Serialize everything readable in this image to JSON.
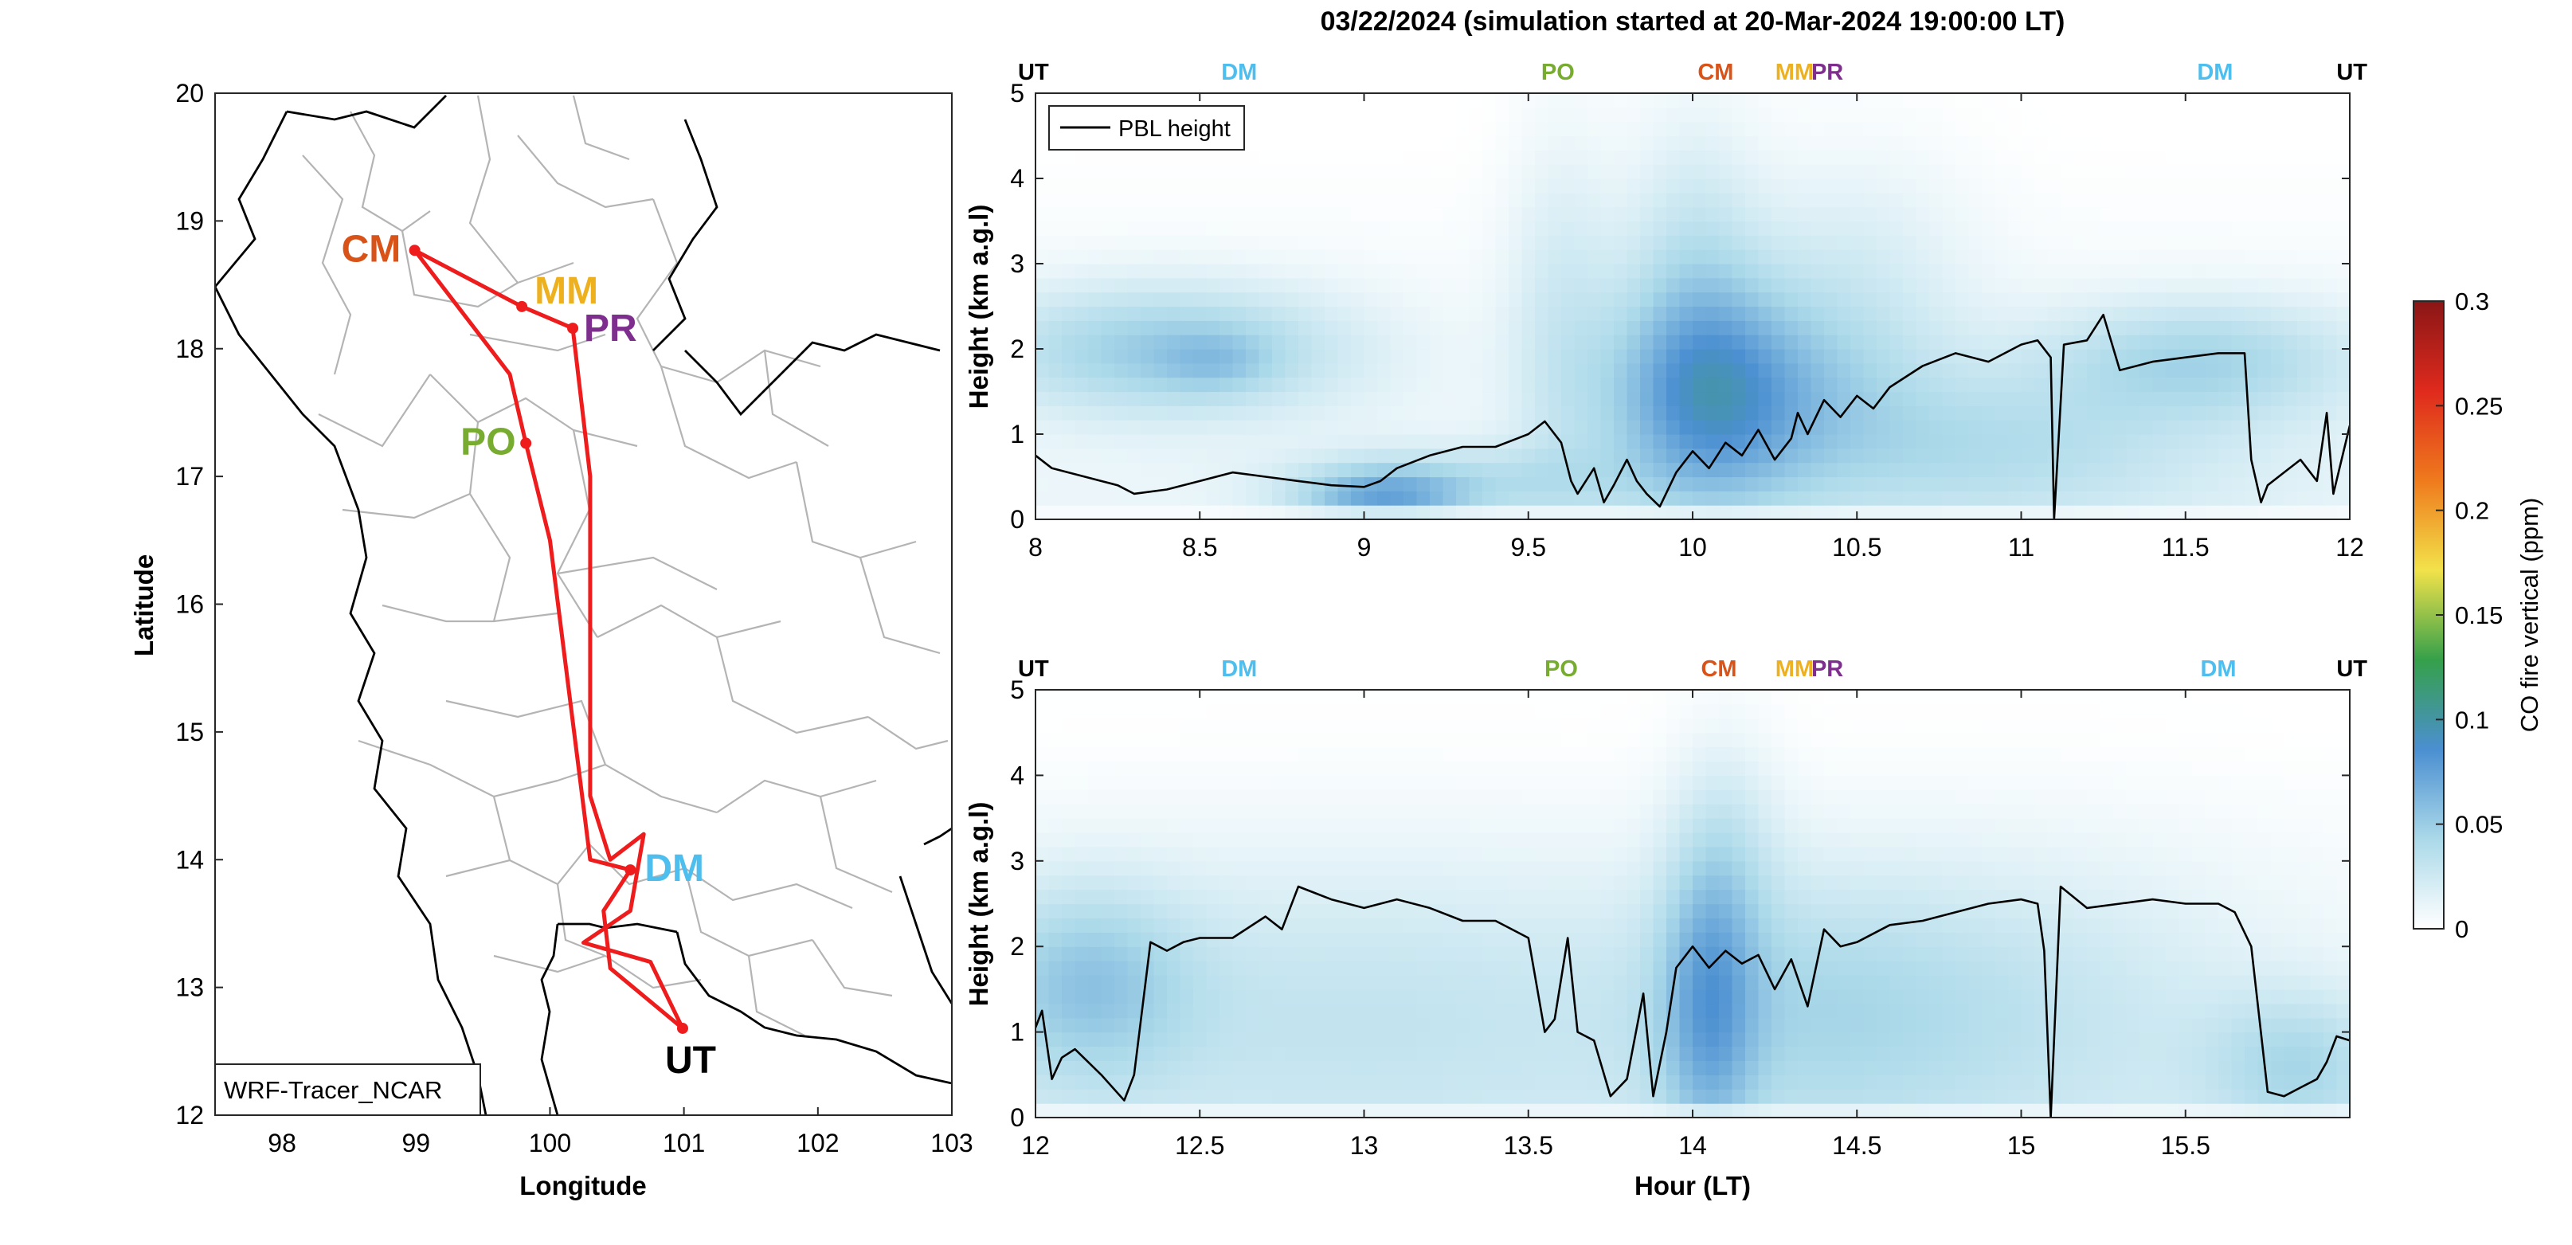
{
  "figure": {
    "title": "03/22/2024 (simulation started at 20-Mar-2024 19:00:00 LT)"
  },
  "chart_data": [
    {
      "type": "scatter",
      "panel": "map",
      "xlabel": "Longitude",
      "ylabel": "Latitude",
      "xlim": [
        97.5,
        103
      ],
      "ylim": [
        12,
        20
      ],
      "xticks": [
        98,
        99,
        100,
        101,
        102,
        103
      ],
      "yticks": [
        12,
        13,
        14,
        15,
        16,
        17,
        18,
        19,
        20
      ],
      "model_label": "WRF-Tracer_NCAR",
      "route_color": "#ee1c1c",
      "stations": [
        {
          "name": "CM",
          "lon": 98.99,
          "lat": 18.77,
          "color": "#d95319"
        },
        {
          "name": "MM",
          "lon": 99.79,
          "lat": 18.33,
          "color": "#edb120"
        },
        {
          "name": "PR",
          "lon": 100.17,
          "lat": 18.16,
          "color": "#7e2f8e"
        },
        {
          "name": "PO",
          "lon": 99.82,
          "lat": 17.26,
          "color": "#77ac30"
        },
        {
          "name": "DM",
          "lon": 100.6,
          "lat": 13.92,
          "color": "#4dbeee"
        },
        {
          "name": "UT",
          "lon": 100.99,
          "lat": 12.68,
          "color": "#000000"
        }
      ],
      "route": [
        [
          100.99,
          12.68
        ],
        [
          100.45,
          13.15
        ],
        [
          100.4,
          13.6
        ],
        [
          100.6,
          13.92
        ],
        [
          100.3,
          14.0
        ],
        [
          100.0,
          16.5
        ],
        [
          99.82,
          17.26
        ],
        [
          99.7,
          17.8
        ],
        [
          98.99,
          18.77
        ],
        [
          99.79,
          18.33
        ],
        [
          100.17,
          18.16
        ],
        [
          100.3,
          17.0
        ],
        [
          100.3,
          14.5
        ],
        [
          100.45,
          14.0
        ],
        [
          100.7,
          14.2
        ],
        [
          100.6,
          13.6
        ],
        [
          100.25,
          13.35
        ],
        [
          100.75,
          13.2
        ],
        [
          100.99,
          12.68
        ]
      ]
    },
    {
      "type": "heatmap",
      "panel": "top",
      "ylabel": "Height (km a.g.l)",
      "xlim": [
        8,
        12
      ],
      "ylim": [
        0,
        5
      ],
      "xticks": [
        "8",
        "8.5",
        "9",
        "9.5",
        "10",
        "10.5",
        "11",
        "11.5",
        "12"
      ],
      "yticks": [
        "0",
        "1",
        "2",
        "3",
        "4",
        "5"
      ],
      "legend": "PBL height",
      "station_marks": [
        {
          "name": "UT",
          "x": 8,
          "color": "#000000"
        },
        {
          "name": "DM",
          "x": 8.62,
          "color": "#4dbeee"
        },
        {
          "name": "PO",
          "x": 9.59,
          "color": "#77ac30"
        },
        {
          "name": "CM",
          "x": 10.07,
          "color": "#d95319"
        },
        {
          "name": "MM",
          "x": 10.31,
          "color": "#edb120"
        },
        {
          "name": "PR",
          "x": 10.41,
          "color": "#7e2f8e"
        },
        {
          "name": "DM",
          "x": 11.59,
          "color": "#4dbeee"
        },
        {
          "name": "UT",
          "x": 12,
          "color": "#000000"
        }
      ],
      "field": {
        "background": 0.01,
        "blobs": [
          {
            "x": 8.4,
            "y": 2.0,
            "sx": 0.4,
            "sy": 0.55,
            "v": 0.045
          },
          {
            "x": 8.55,
            "y": 1.85,
            "sx": 0.12,
            "sy": 0.25,
            "v": 0.015
          },
          {
            "x": 9.05,
            "y": 0.25,
            "sx": 0.18,
            "sy": 0.25,
            "v": 0.05
          },
          {
            "x": 9.3,
            "y": 0.45,
            "sx": 0.35,
            "sy": 0.3,
            "v": 0.025
          },
          {
            "x": 9.6,
            "y": 2.4,
            "sx": 0.12,
            "sy": 1.6,
            "v": 0.02
          },
          {
            "x": 10.05,
            "y": 1.4,
            "sx": 0.22,
            "sy": 0.9,
            "v": 0.07
          },
          {
            "x": 10.0,
            "y": 3.0,
            "sx": 0.15,
            "sy": 1.3,
            "v": 0.025
          },
          {
            "x": 10.45,
            "y": 1.5,
            "sx": 0.25,
            "sy": 1.0,
            "v": 0.025
          },
          {
            "x": 10.5,
            "y": 3.2,
            "sx": 0.25,
            "sy": 1.0,
            "v": 0.012
          },
          {
            "x": 10.9,
            "y": 0.8,
            "sx": 0.35,
            "sy": 0.6,
            "v": 0.02
          },
          {
            "x": 11.55,
            "y": 1.9,
            "sx": 0.35,
            "sy": 0.5,
            "v": 0.035
          },
          {
            "x": 11.35,
            "y": 0.9,
            "sx": 0.5,
            "sy": 0.8,
            "v": 0.012
          }
        ]
      },
      "pbl_height": {
        "x": [
          8.0,
          8.05,
          8.1,
          8.15,
          8.2,
          8.25,
          8.3,
          8.4,
          8.5,
          8.6,
          8.7,
          8.8,
          8.9,
          9.0,
          9.05,
          9.1,
          9.2,
          9.3,
          9.4,
          9.5,
          9.55,
          9.6,
          9.63,
          9.65,
          9.7,
          9.73,
          9.76,
          9.8,
          9.83,
          9.86,
          9.9,
          9.95,
          10.0,
          10.05,
          10.1,
          10.15,
          10.2,
          10.25,
          10.3,
          10.32,
          10.35,
          10.4,
          10.45,
          10.5,
          10.55,
          10.6,
          10.7,
          10.8,
          10.9,
          11.0,
          11.05,
          11.09,
          11.1,
          11.13,
          11.2,
          11.25,
          11.3,
          11.4,
          11.5,
          11.6,
          11.68,
          11.7,
          11.73,
          11.75,
          11.8,
          11.85,
          11.9,
          11.93,
          11.95,
          12.0
        ],
        "y": [
          0.75,
          0.6,
          0.55,
          0.5,
          0.45,
          0.4,
          0.3,
          0.35,
          0.45,
          0.55,
          0.5,
          0.45,
          0.4,
          0.38,
          0.45,
          0.6,
          0.75,
          0.85,
          0.85,
          1.0,
          1.15,
          0.9,
          0.45,
          0.3,
          0.6,
          0.2,
          0.4,
          0.7,
          0.45,
          0.3,
          0.15,
          0.55,
          0.8,
          0.6,
          0.9,
          0.75,
          1.05,
          0.7,
          0.95,
          1.25,
          1.0,
          1.4,
          1.2,
          1.45,
          1.3,
          1.55,
          1.8,
          1.95,
          1.85,
          2.05,
          2.1,
          1.9,
          0.0,
          2.05,
          2.1,
          2.4,
          1.75,
          1.85,
          1.9,
          1.95,
          1.95,
          0.7,
          0.2,
          0.4,
          0.55,
          0.7,
          0.45,
          1.25,
          0.3,
          1.1
        ]
      }
    },
    {
      "type": "heatmap",
      "panel": "bottom",
      "xlabel": "Hour (LT)",
      "ylabel": "Height (km a.g.l)",
      "xlim": [
        12,
        16
      ],
      "ylim": [
        0,
        5
      ],
      "xticks": [
        "12",
        "12.5",
        "13",
        "13.5",
        "14",
        "14.5",
        "15",
        "15.5"
      ],
      "yticks": [
        "0",
        "1",
        "2",
        "3",
        "4",
        "5"
      ],
      "station_marks": [
        {
          "name": "UT",
          "x": 12,
          "color": "#000000"
        },
        {
          "name": "DM",
          "x": 12.62,
          "color": "#4dbeee"
        },
        {
          "name": "PO",
          "x": 13.6,
          "color": "#77ac30"
        },
        {
          "name": "CM",
          "x": 14.08,
          "color": "#d95319"
        },
        {
          "name": "MM",
          "x": 14.31,
          "color": "#edb120"
        },
        {
          "name": "PR",
          "x": 14.41,
          "color": "#7e2f8e"
        },
        {
          "name": "DM",
          "x": 15.6,
          "color": "#4dbeee"
        },
        {
          "name": "UT",
          "x": 16,
          "color": "#000000"
        }
      ],
      "field": {
        "background": 0.012,
        "blobs": [
          {
            "x": 12.15,
            "y": 1.6,
            "sx": 0.22,
            "sy": 0.8,
            "v": 0.035
          },
          {
            "x": 13.0,
            "y": 1.3,
            "sx": 0.9,
            "sy": 1.3,
            "v": 0.022
          },
          {
            "x": 14.05,
            "y": 1.3,
            "sx": 0.1,
            "sy": 1.2,
            "v": 0.045
          },
          {
            "x": 14.1,
            "y": 3.2,
            "sx": 0.12,
            "sy": 1.0,
            "v": 0.018
          },
          {
            "x": 14.35,
            "y": 1.3,
            "sx": 0.35,
            "sy": 1.1,
            "v": 0.02
          },
          {
            "x": 15.0,
            "y": 1.3,
            "sx": 0.5,
            "sy": 1.3,
            "v": 0.02
          },
          {
            "x": 15.85,
            "y": 0.6,
            "sx": 0.2,
            "sy": 0.6,
            "v": 0.03
          }
        ]
      },
      "pbl_height": {
        "x": [
          12.0,
          12.02,
          12.05,
          12.08,
          12.12,
          12.2,
          12.27,
          12.3,
          12.35,
          12.4,
          12.45,
          12.5,
          12.6,
          12.7,
          12.75,
          12.8,
          12.9,
          13.0,
          13.1,
          13.2,
          13.3,
          13.4,
          13.5,
          13.55,
          13.58,
          13.62,
          13.65,
          13.7,
          13.75,
          13.8,
          13.85,
          13.88,
          13.92,
          13.95,
          14.0,
          14.05,
          14.1,
          14.15,
          14.2,
          14.25,
          14.3,
          14.35,
          14.4,
          14.45,
          14.5,
          14.6,
          14.7,
          14.8,
          14.9,
          15.0,
          15.05,
          15.07,
          15.09,
          15.12,
          15.2,
          15.3,
          15.4,
          15.5,
          15.6,
          15.65,
          15.7,
          15.75,
          15.8,
          15.85,
          15.9,
          15.93,
          15.96,
          16.0
        ],
        "y": [
          1.05,
          1.25,
          0.45,
          0.7,
          0.8,
          0.5,
          0.2,
          0.5,
          2.05,
          1.95,
          2.05,
          2.1,
          2.1,
          2.35,
          2.2,
          2.7,
          2.55,
          2.45,
          2.55,
          2.45,
          2.3,
          2.3,
          2.1,
          1.0,
          1.15,
          2.1,
          1.0,
          0.9,
          0.25,
          0.45,
          1.45,
          0.25,
          1.0,
          1.75,
          2.0,
          1.75,
          1.95,
          1.8,
          1.9,
          1.5,
          1.85,
          1.3,
          2.2,
          2.0,
          2.05,
          2.25,
          2.3,
          2.4,
          2.5,
          2.55,
          2.5,
          1.95,
          0.0,
          2.7,
          2.45,
          2.5,
          2.55,
          2.5,
          2.5,
          2.4,
          2.0,
          0.3,
          0.25,
          0.35,
          0.45,
          0.65,
          0.95,
          0.9
        ]
      }
    },
    {
      "type": "heatmap",
      "panel": "colorbar",
      "label": "CO fire vertical (ppm)",
      "ticks": [
        "0",
        "0.05",
        "0.1",
        "0.15",
        "0.2",
        "0.25",
        "0.3"
      ],
      "range": [
        0,
        0.3
      ],
      "colors": [
        "#ffffff",
        "#abd9e9",
        "#4b8fd1",
        "#35a04a",
        "#f2e24a",
        "#ef7a1d",
        "#df2a1d",
        "#8a1616"
      ]
    }
  ]
}
